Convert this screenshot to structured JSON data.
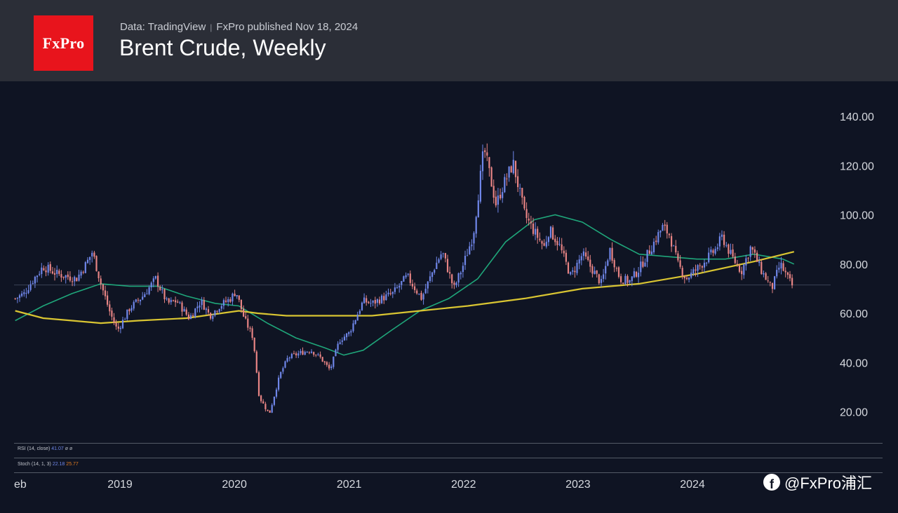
{
  "header": {
    "logo": "FxPro",
    "source": "Data: TradingView",
    "separator": "|",
    "published": "FxPro published Nov 18, 2024",
    "title": "Brent Crude, Weekly"
  },
  "indicators": {
    "rsi": {
      "label": "RSI (14, close)",
      "value": "41.07",
      "extra1": "ø",
      "extra2": "ø"
    },
    "stoch": {
      "label": "Stoch (14, 1, 3)",
      "k": "22.18",
      "d": "25.77"
    }
  },
  "watermark": {
    "icon": "facebook-icon",
    "text": "@FxPro浦汇"
  },
  "colors": {
    "background": "#0f1423",
    "header": "#2b2e37",
    "up": "#6f86e8",
    "down": "#e78484",
    "ma_slow": "#d9c532",
    "ma_fast": "#1fa67a",
    "logo": "#e8141c"
  },
  "chart_data": {
    "type": "candlestick",
    "title": "Brent Crude, Weekly",
    "y_ticks": [
      "140.00",
      "120.00",
      "100.00",
      "80.00",
      "60.00",
      "40.00",
      "20.00"
    ],
    "x_ticks": [
      "eb",
      "2019",
      "2020",
      "2021",
      "2022",
      "2023",
      "2024"
    ],
    "ylim": [
      10,
      148
    ],
    "current_price": 71.5,
    "price_path": [
      [
        "2018-02-01",
        66
      ],
      [
        "2018-03-01",
        68
      ],
      [
        "2018-04-01",
        74
      ],
      [
        "2018-05-01",
        79
      ],
      [
        "2018-06-15",
        76
      ],
      [
        "2018-07-15",
        75
      ],
      [
        "2018-08-15",
        74
      ],
      [
        "2018-09-15",
        80
      ],
      [
        "2018-10-05",
        85
      ],
      [
        "2018-11-01",
        72
      ],
      [
        "2018-12-01",
        60
      ],
      [
        "2018-12-24",
        53
      ],
      [
        "2019-02-01",
        62
      ],
      [
        "2019-03-15",
        67
      ],
      [
        "2019-04-25",
        74
      ],
      [
        "2019-06-01",
        64
      ],
      [
        "2019-07-01",
        65
      ],
      [
        "2019-08-10",
        58
      ],
      [
        "2019-09-16",
        65
      ],
      [
        "2019-10-15",
        59
      ],
      [
        "2019-11-15",
        63
      ],
      [
        "2019-12-20",
        66
      ],
      [
        "2020-01-06",
        69
      ],
      [
        "2020-02-01",
        58
      ],
      [
        "2020-03-01",
        50
      ],
      [
        "2020-03-20",
        26
      ],
      [
        "2020-04-21",
        19
      ],
      [
        "2020-05-25",
        35
      ],
      [
        "2020-06-20",
        42
      ],
      [
        "2020-08-01",
        44
      ],
      [
        "2020-09-01",
        45
      ],
      [
        "2020-10-01",
        42
      ],
      [
        "2020-11-01",
        37
      ],
      [
        "2020-12-01",
        49
      ],
      [
        "2021-01-01",
        52
      ],
      [
        "2021-02-15",
        65
      ],
      [
        "2021-03-15",
        64
      ],
      [
        "2021-04-15",
        66
      ],
      [
        "2021-05-20",
        68
      ],
      [
        "2021-07-05",
        75
      ],
      [
        "2021-08-20",
        66
      ],
      [
        "2021-10-01",
        79
      ],
      [
        "2021-10-25",
        85
      ],
      [
        "2021-12-01",
        70
      ],
      [
        "2022-01-01",
        80
      ],
      [
        "2022-02-01",
        92
      ],
      [
        "2022-03-07",
        127
      ],
      [
        "2022-04-15",
        104
      ],
      [
        "2022-05-01",
        110
      ],
      [
        "2022-06-08",
        121
      ],
      [
        "2022-07-15",
        100
      ],
      [
        "2022-08-15",
        93
      ],
      [
        "2022-09-15",
        87
      ],
      [
        "2022-10-01",
        94
      ],
      [
        "2022-11-01",
        88
      ],
      [
        "2022-12-09",
        75
      ],
      [
        "2023-01-15",
        84
      ],
      [
        "2023-03-17",
        72
      ],
      [
        "2023-04-12",
        86
      ],
      [
        "2023-05-15",
        74
      ],
      [
        "2023-06-15",
        73
      ],
      [
        "2023-07-15",
        78
      ],
      [
        "2023-08-15",
        85
      ],
      [
        "2023-09-27",
        95
      ],
      [
        "2023-10-20",
        92
      ],
      [
        "2023-11-15",
        80
      ],
      [
        "2023-12-12",
        74
      ],
      [
        "2024-01-15",
        78
      ],
      [
        "2024-02-15",
        82
      ],
      [
        "2024-03-15",
        86
      ],
      [
        "2024-04-05",
        91
      ],
      [
        "2024-05-05",
        83
      ],
      [
        "2024-06-05",
        77
      ],
      [
        "2024-07-05",
        87
      ],
      [
        "2024-08-05",
        78
      ],
      [
        "2024-09-10",
        70
      ],
      [
        "2024-10-07",
        80
      ],
      [
        "2024-11-01",
        74
      ],
      [
        "2024-11-15",
        71
      ]
    ],
    "ma_fast_path": [
      [
        "2018-02-01",
        57
      ],
      [
        "2018-05-01",
        63
      ],
      [
        "2018-08-01",
        68
      ],
      [
        "2018-11-01",
        72
      ],
      [
        "2019-02-01",
        71
      ],
      [
        "2019-05-01",
        71
      ],
      [
        "2019-08-01",
        67
      ],
      [
        "2019-11-01",
        64
      ],
      [
        "2020-01-15",
        63
      ],
      [
        "2020-04-15",
        56
      ],
      [
        "2020-07-15",
        50
      ],
      [
        "2020-10-15",
        46
      ],
      [
        "2020-12-15",
        43
      ],
      [
        "2021-02-15",
        45
      ],
      [
        "2021-05-15",
        53
      ],
      [
        "2021-08-15",
        61
      ],
      [
        "2021-11-15",
        66
      ],
      [
        "2022-02-15",
        74
      ],
      [
        "2022-05-15",
        89
      ],
      [
        "2022-08-15",
        98
      ],
      [
        "2022-10-20",
        100
      ],
      [
        "2023-01-15",
        97
      ],
      [
        "2023-04-15",
        90
      ],
      [
        "2023-07-15",
        84
      ],
      [
        "2023-10-15",
        83
      ],
      [
        "2024-01-15",
        82
      ],
      [
        "2024-04-15",
        82
      ],
      [
        "2024-07-15",
        84
      ],
      [
        "2024-10-15",
        82
      ],
      [
        "2024-11-20",
        80
      ]
    ],
    "ma_slow_path": [
      [
        "2018-02-01",
        61
      ],
      [
        "2018-05-01",
        58
      ],
      [
        "2018-08-01",
        57
      ],
      [
        "2018-11-01",
        56
      ],
      [
        "2019-03-01",
        57
      ],
      [
        "2019-08-01",
        58
      ],
      [
        "2020-01-15",
        61
      ],
      [
        "2020-03-15",
        60
      ],
      [
        "2020-06-15",
        59
      ],
      [
        "2020-11-15",
        59
      ],
      [
        "2021-03-15",
        59
      ],
      [
        "2021-08-15",
        61
      ],
      [
        "2022-01-15",
        63
      ],
      [
        "2022-07-15",
        66
      ],
      [
        "2023-01-15",
        70
      ],
      [
        "2023-07-15",
        72
      ],
      [
        "2024-01-15",
        76
      ],
      [
        "2024-07-15",
        81
      ],
      [
        "2024-11-20",
        85
      ]
    ]
  }
}
